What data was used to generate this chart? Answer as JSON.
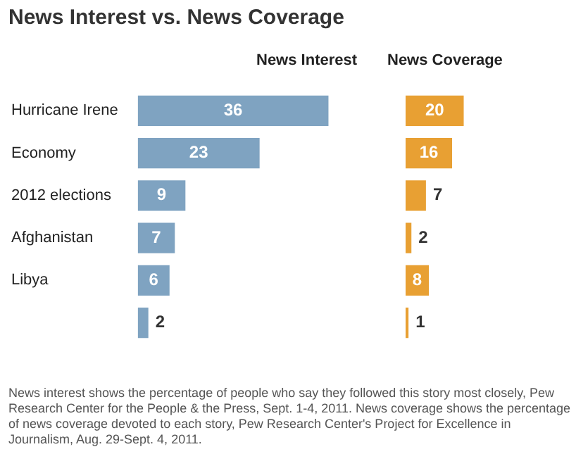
{
  "chart_data": [
    {
      "type": "bar",
      "orientation": "horizontal",
      "title": "News Interest vs. News Coverage",
      "categories": [
        "Hurricane Irene",
        "Economy",
        "2012 elections",
        "Afghanistan",
        "Libya",
        null
      ],
      "series": [
        {
          "name": "News Interest",
          "color": "#7fa3c1",
          "values": [
            36,
            23,
            9,
            7,
            6,
            2
          ]
        }
      ],
      "data_labels": true
    },
    {
      "type": "bar",
      "orientation": "horizontal",
      "categories": [
        null,
        null,
        null,
        null,
        null,
        null
      ],
      "tick_labels": false,
      "series": [
        {
          "name": "News Coverage",
          "color": "#e8a033",
          "values": [
            20,
            16,
            7,
            2,
            8,
            1
          ]
        }
      ],
      "data_labels": true,
      "annotations": [
        "News interest shows the percentage of people who say they followed this story most closely, Pew Research Center for the People & the Press, Sept. 1-4, 2011. News coverage shows the percentage of news coverage devoted to each story, Pew Research Center's Project for Excellence in Journalism, Aug. 29-Sept. 4, 2011."
      ]
    }
  ]
}
